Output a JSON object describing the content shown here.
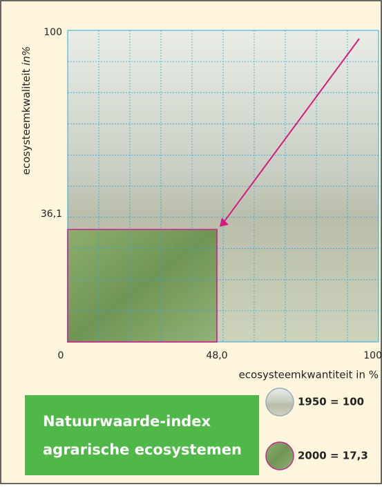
{
  "chart_data": {
    "type": "area-rect",
    "x_label": "ecosysteemkwantiteit in %",
    "y_label": "ecosysteemkwaliteit",
    "y_label_italic": "in%",
    "xlim": [
      0,
      100
    ],
    "ylim": [
      0,
      100
    ],
    "xticks": [
      0,
      {
        "value": 48,
        "label": "48,0"
      },
      100
    ],
    "yticks": [
      {
        "value": 36.1,
        "label": "36,1"
      },
      100
    ],
    "grid": true,
    "grid_step": 10,
    "series": [
      {
        "name": "1950 = 100",
        "color": "#d6dccf",
        "x": 100,
        "y": 100
      },
      {
        "name": "2000 = 17,3",
        "color": "#7fa263",
        "x": 48,
        "y": 36.1
      }
    ],
    "title_lines": [
      "Natuurwaarde-index",
      "agrarische ecosystemen"
    ]
  }
}
